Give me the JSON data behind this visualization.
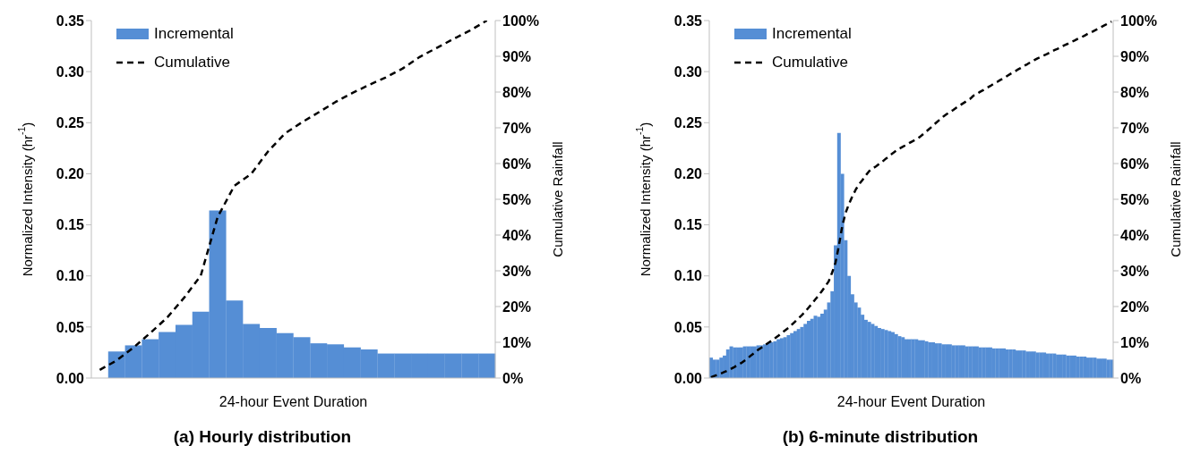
{
  "chart_data": [
    {
      "type": "bar",
      "title": "(a)  Hourly distribution",
      "xlabel": "24-hour Event Duration",
      "ylabel": "Normalized Intensity (hr$^{-1}$)",
      "y2label": "Cumulative Rainfall",
      "categories": [
        null,
        null,
        null,
        null,
        null,
        null,
        null,
        null,
        null,
        null,
        null,
        null,
        null,
        null,
        null,
        null,
        null,
        null,
        null,
        null,
        null,
        null,
        null,
        null
      ],
      "series": [
        {
          "name": "Incremental",
          "color": "#558ed5",
          "values": [
            null,
            0.026,
            0.032,
            0.038,
            0.045,
            0.052,
            0.065,
            0.164,
            0.076,
            0.053,
            0.049,
            0.044,
            0.04,
            0.034,
            0.033,
            0.03,
            0.028,
            0.024,
            0.024,
            0.024,
            0.024,
            0.024,
            0.024,
            0.024
          ]
        },
        {
          "name": "Cumulative",
          "type": "line",
          "axis": "y2",
          "color": "#000000",
          "line_style": "dashed",
          "values": [
            2.3,
            4.9,
            8.5,
            12.6,
            16.9,
            22.4,
            28.6,
            45.0,
            53.8,
            57.1,
            63.4,
            68.4,
            71.5,
            74.3,
            77.2,
            79.7,
            82.0,
            84.1,
            86.6,
            89.8,
            92.3,
            94.8,
            97.2,
            100
          ]
        }
      ],
      "ylim": [
        0,
        0.35
      ],
      "yticks": [
        {
          "value": 0,
          "label": "0.00"
        },
        {
          "value": 0.05,
          "label": "0.05"
        },
        {
          "value": 0.1,
          "label": "0.10"
        },
        {
          "value": 0.15,
          "label": "0.15"
        },
        {
          "value": 0.2,
          "label": "0.20"
        },
        {
          "value": 0.25,
          "label": "0.25"
        },
        {
          "value": 0.3,
          "label": "0.30"
        },
        {
          "value": 0.35,
          "label": "0.35"
        }
      ],
      "y2lim": [
        0,
        100
      ],
      "y2ticks": [
        {
          "value": 0,
          "label": "0%"
        },
        {
          "value": 10,
          "label": "10%"
        },
        {
          "value": 20,
          "label": "20%"
        },
        {
          "value": 30,
          "label": "30%"
        },
        {
          "value": 40,
          "label": "40%"
        },
        {
          "value": 50,
          "label": "50%"
        },
        {
          "value": 60,
          "label": "60%"
        },
        {
          "value": 70,
          "label": "70%"
        },
        {
          "value": 80,
          "label": "80%"
        },
        {
          "value": 90,
          "label": "90%"
        },
        {
          "value": 100,
          "label": "100%"
        }
      ],
      "grid": false,
      "legend": "top left"
    },
    {
      "type": "bar",
      "title": "(b) 6-minute distribution",
      "xlabel": "24-hour Event Duration",
      "ylabel": "Normalized Intensity (hr$^{-1}$)",
      "y2label": "Cumulative Rainfall",
      "categories": [
        null,
        null,
        null,
        null,
        null,
        null,
        null,
        null,
        null,
        null,
        null,
        null,
        null,
        null,
        null,
        null,
        null,
        null,
        null,
        null,
        null,
        null,
        null,
        null,
        null,
        null,
        null,
        null,
        null,
        null,
        null,
        null,
        null,
        null,
        null,
        null,
        null,
        null,
        null,
        null,
        null,
        null,
        null,
        null,
        null,
        null,
        null,
        null,
        null,
        null,
        null,
        null,
        null,
        null,
        null,
        null,
        null,
        null,
        null,
        null,
        null,
        null,
        null,
        null,
        null,
        null,
        null,
        null,
        null,
        null,
        null,
        null,
        null,
        null,
        null,
        null,
        null,
        null,
        null,
        null,
        null,
        null,
        null,
        null,
        null,
        null,
        null,
        null,
        null,
        null,
        null,
        null,
        null,
        null,
        null,
        null,
        null,
        null,
        null,
        null,
        null,
        null,
        null,
        null,
        null,
        null,
        null,
        null,
        null,
        null,
        null,
        null,
        null,
        null,
        null,
        null,
        null,
        null,
        null,
        null
      ],
      "series": [
        {
          "name": "Incremental",
          "color": "#558ed5",
          "values": [
            0.02,
            0.018,
            0.018,
            0.02,
            0.022,
            0.028,
            0.031,
            0.03,
            0.03,
            0.03,
            0.031,
            0.031,
            0.031,
            0.031,
            0.032,
            0.032,
            0.033,
            0.034,
            0.035,
            0.036,
            0.038,
            0.039,
            0.04,
            0.042,
            0.044,
            0.046,
            0.048,
            0.05,
            0.053,
            0.056,
            0.058,
            0.061,
            0.06,
            0.063,
            0.067,
            0.074,
            0.085,
            0.13,
            0.24,
            0.2,
            0.135,
            0.1,
            0.082,
            0.074,
            0.069,
            0.062,
            0.057,
            0.055,
            0.053,
            0.051,
            0.049,
            0.048,
            0.047,
            0.046,
            0.045,
            0.043,
            0.041,
            0.04,
            0.038,
            0.038,
            0.038,
            0.038,
            0.037,
            0.037,
            0.036,
            0.035,
            0.035,
            0.034,
            0.034,
            0.033,
            0.033,
            0.033,
            0.032,
            0.032,
            0.032,
            0.032,
            0.031,
            0.031,
            0.031,
            0.031,
            0.03,
            0.03,
            0.03,
            0.03,
            0.029,
            0.029,
            0.029,
            0.029,
            0.028,
            0.028,
            0.028,
            0.027,
            0.027,
            0.027,
            0.026,
            0.026,
            0.026,
            0.025,
            0.025,
            0.025,
            0.024,
            0.024,
            0.024,
            0.023,
            0.023,
            0.023,
            0.022,
            0.022,
            0.022,
            0.021,
            0.021,
            0.021,
            0.02,
            0.02,
            0.02,
            0.019,
            0.019,
            0.019,
            0.018,
            0.018
          ]
        },
        {
          "name": "Cumulative",
          "type": "line",
          "axis": "y2",
          "color": "#000000",
          "line_style": "dashed",
          "values": [
            0.2,
            0.6,
            0.9,
            1.3,
            1.7,
            2.1,
            2.6,
            3.1,
            3.7,
            4.2,
            4.9,
            5.6,
            6.4,
            7.1,
            7.9,
            8.5,
            9.2,
            9.8,
            10.4,
            11.1,
            11.8,
            12.6,
            13.3,
            14.0,
            14.9,
            15.8,
            16.7,
            17.6,
            18.6,
            19.7,
            20.8,
            22.0,
            23.1,
            24.4,
            25.7,
            27.1,
            29.5,
            32.3,
            37.0,
            42.5,
            46.2,
            48.7,
            50.8,
            52.7,
            54.2,
            55.4,
            56.7,
            57.9,
            58.6,
            59.2,
            59.9,
            60.6,
            61.4,
            62.1,
            62.9,
            63.6,
            64.2,
            64.7,
            65.2,
            65.8,
            66.3,
            66.8,
            67.4,
            68.2,
            69.0,
            69.8,
            70.7,
            71.5,
            72.3,
            73.1,
            73.8,
            74.4,
            75.0,
            75.7,
            76.3,
            76.9,
            77.5,
            78.1,
            79.0,
            79.5,
            80.1,
            80.6,
            81.2,
            81.7,
            82.3,
            82.8,
            83.4,
            83.9,
            84.5,
            85.1,
            85.6,
            86.2,
            86.7,
            87.3,
            87.8,
            88.4,
            88.9,
            89.4,
            89.8,
            90.3,
            90.7,
            91.2,
            91.7,
            92.1,
            92.6,
            93.1,
            93.5,
            94.0,
            94.4,
            94.9,
            95.3,
            95.8,
            96.3,
            96.7,
            97.2,
            97.7,
            98.2,
            98.7,
            99.2,
            99.7
          ]
        }
      ],
      "ylim": [
        0,
        0.35
      ],
      "yticks": [
        {
          "value": 0,
          "label": "0.00"
        },
        {
          "value": 0.05,
          "label": "0.05"
        },
        {
          "value": 0.1,
          "label": "0.10"
        },
        {
          "value": 0.15,
          "label": "0.15"
        },
        {
          "value": 0.2,
          "label": "0.20"
        },
        {
          "value": 0.25,
          "label": "0.25"
        },
        {
          "value": 0.3,
          "label": "0.30"
        },
        {
          "value": 0.35,
          "label": "0.35"
        }
      ],
      "y2lim": [
        0,
        100
      ],
      "y2ticks": [
        {
          "value": 0,
          "label": "0%"
        },
        {
          "value": 10,
          "label": "10%"
        },
        {
          "value": 20,
          "label": "20%"
        },
        {
          "value": 30,
          "label": "30%"
        },
        {
          "value": 40,
          "label": "40%"
        },
        {
          "value": 50,
          "label": "50%"
        },
        {
          "value": 60,
          "label": "60%"
        },
        {
          "value": 70,
          "label": "70%"
        },
        {
          "value": 80,
          "label": "80%"
        },
        {
          "value": 90,
          "label": "90%"
        },
        {
          "value": 100,
          "label": "100%"
        }
      ],
      "grid": false,
      "legend": "top left"
    }
  ]
}
